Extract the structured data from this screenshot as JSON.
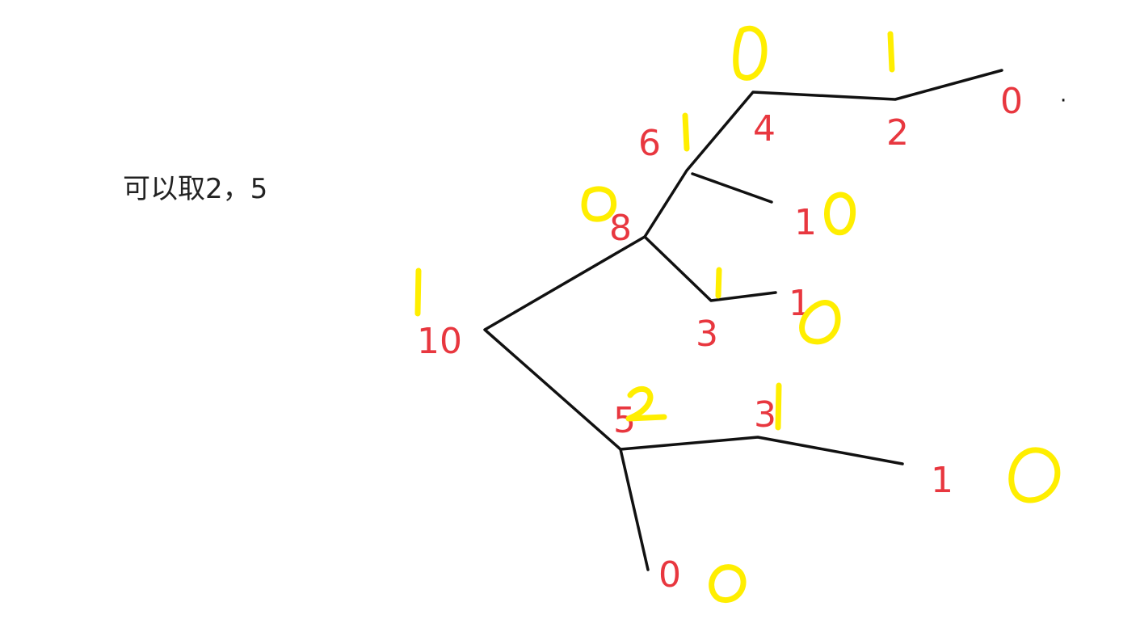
{
  "note": "可以取2，5",
  "colors": {
    "edge": "#111111",
    "label": "#e8373f",
    "annotation": "#ffee00",
    "note": "#222222"
  },
  "node_labels": [
    "0",
    "4",
    "2",
    "6",
    "1",
    "8",
    "3",
    "1",
    "10",
    "5",
    "3",
    "1",
    "0"
  ],
  "annotation_marks": [
    "0",
    "1",
    "1",
    "0",
    "0",
    "1",
    "0",
    "1",
    "2",
    "1",
    "0",
    "0"
  ],
  "stray_mark": "·"
}
